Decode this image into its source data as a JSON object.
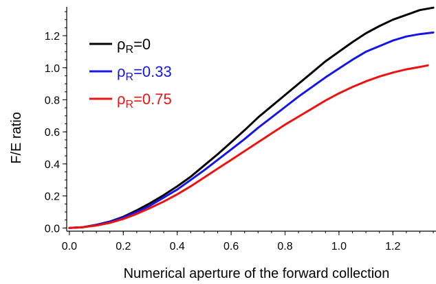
{
  "chart_data": {
    "type": "line",
    "title": "",
    "xlabel": "Numerical aperture of the forward collection",
    "ylabel": "F/E ratio",
    "xlim": [
      -0.01,
      1.36
    ],
    "ylim": [
      -0.02,
      1.38
    ],
    "x_ticks": [
      "0.0",
      "0.2",
      "0.4",
      "0.6",
      "0.8",
      "1.0",
      "1.2"
    ],
    "y_ticks": [
      "0.0",
      "0.2",
      "0.4",
      "0.6",
      "0.8",
      "1.0",
      "1.2"
    ],
    "legend_position": "top-left",
    "grid": false,
    "series": [
      {
        "name": "ρ_R=0",
        "label_main": "ρ",
        "label_sub": "R",
        "label_tail": "=0",
        "color": "#000000",
        "x": [
          0.0,
          0.05,
          0.1,
          0.15,
          0.2,
          0.25,
          0.3,
          0.35,
          0.4,
          0.45,
          0.5,
          0.55,
          0.6,
          0.65,
          0.7,
          0.75,
          0.8,
          0.85,
          0.9,
          0.95,
          1.0,
          1.05,
          1.1,
          1.15,
          1.2,
          1.25,
          1.3,
          1.35
        ],
        "y": [
          0.0,
          0.005,
          0.02,
          0.04,
          0.07,
          0.11,
          0.155,
          0.205,
          0.26,
          0.32,
          0.39,
          0.46,
          0.535,
          0.61,
          0.69,
          0.76,
          0.83,
          0.9,
          0.97,
          1.04,
          1.1,
          1.16,
          1.215,
          1.26,
          1.3,
          1.33,
          1.36,
          1.375
        ]
      },
      {
        "name": "ρ_R=0.33",
        "label_main": "ρ",
        "label_sub": "R",
        "label_tail": "=0.33",
        "color": "#1515e6",
        "x": [
          0.0,
          0.05,
          0.1,
          0.15,
          0.2,
          0.25,
          0.3,
          0.35,
          0.4,
          0.45,
          0.5,
          0.55,
          0.6,
          0.65,
          0.7,
          0.75,
          0.8,
          0.85,
          0.9,
          0.95,
          1.0,
          1.05,
          1.1,
          1.15,
          1.2,
          1.25,
          1.3,
          1.35
        ],
        "y": [
          0.0,
          0.005,
          0.018,
          0.038,
          0.066,
          0.1,
          0.14,
          0.19,
          0.24,
          0.3,
          0.36,
          0.425,
          0.49,
          0.555,
          0.625,
          0.69,
          0.755,
          0.82,
          0.88,
          0.94,
          0.995,
          1.05,
          1.1,
          1.135,
          1.17,
          1.195,
          1.21,
          1.22
        ]
      },
      {
        "name": "ρ_R=0.75",
        "label_main": "ρ",
        "label_sub": "R",
        "label_tail": "=0.75",
        "color": "#ee1111",
        "x": [
          0.0,
          0.05,
          0.1,
          0.15,
          0.2,
          0.25,
          0.3,
          0.35,
          0.4,
          0.45,
          0.5,
          0.55,
          0.6,
          0.65,
          0.7,
          0.75,
          0.8,
          0.85,
          0.9,
          0.95,
          1.0,
          1.05,
          1.1,
          1.15,
          1.2,
          1.25,
          1.3,
          1.33
        ],
        "y": [
          0.0,
          0.005,
          0.015,
          0.032,
          0.056,
          0.088,
          0.125,
          0.165,
          0.21,
          0.26,
          0.315,
          0.37,
          0.425,
          0.48,
          0.535,
          0.59,
          0.645,
          0.695,
          0.745,
          0.795,
          0.84,
          0.88,
          0.915,
          0.945,
          0.97,
          0.99,
          1.005,
          1.015
        ]
      }
    ]
  }
}
